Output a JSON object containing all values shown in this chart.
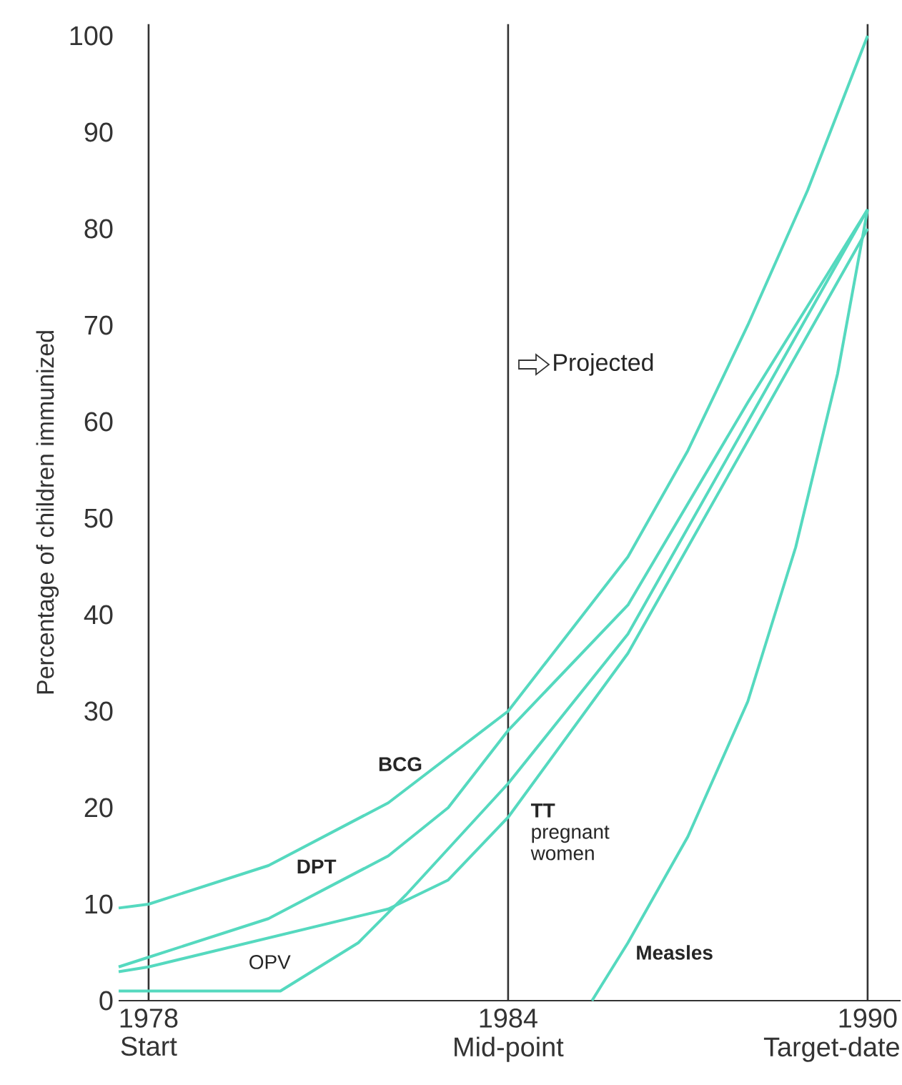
{
  "chart_data": {
    "type": "line",
    "ylabel": "Percentage of children immunized",
    "xlim": [
      1977.5,
      1990.55
    ],
    "ylim": [
      0,
      101.2
    ],
    "xticks": [
      1978,
      1984,
      1990
    ],
    "yticks": [
      0,
      10,
      20,
      30,
      40,
      50,
      60,
      70,
      80,
      90,
      100
    ],
    "series": [
      {
        "name": "BCG",
        "color": "#55d9bf",
        "x": [
          1977.5,
          1978,
          1980,
          1982,
          1984,
          1986,
          1987,
          1988,
          1989,
          1990
        ],
        "values": [
          9.6,
          10,
          14,
          20.5,
          30,
          46,
          57,
          70,
          84,
          100
        ]
      },
      {
        "name": "DPT",
        "color": "#55d9bf",
        "x": [
          1977.5,
          1978,
          1980,
          1982,
          1983,
          1984,
          1986,
          1988,
          1990
        ],
        "values": [
          3.5,
          4.5,
          8.5,
          15,
          20,
          28,
          41,
          62,
          82
        ]
      },
      {
        "name": "**TT** pregnant women",
        "color": "#55d9bf",
        "x": [
          1977.5,
          1978,
          1980,
          1982,
          1983,
          1984,
          1986,
          1988,
          1990
        ],
        "values": [
          3,
          3.5,
          6.5,
          9.5,
          12.5,
          19,
          36,
          58,
          80
        ]
      },
      {
        "name": "OPV",
        "color": "#55d9bf",
        "x": [
          1977.5,
          1980.2,
          1981.5,
          1982.3,
          1984,
          1986,
          1988,
          1990
        ],
        "values": [
          1,
          1,
          6,
          11,
          22.5,
          38,
          60,
          82
        ]
      },
      {
        "name": "Measles",
        "color": "#55d9bf",
        "x": [
          1985.4,
          1986,
          1987,
          1988,
          1988.8,
          1989.5,
          1990
        ],
        "values": [
          0,
          6,
          17,
          31,
          47,
          65,
          82
        ]
      }
    ],
    "ref_lines": [
      {
        "axis": "x",
        "value": 1978,
        "label": "Start",
        "color": "#333333"
      },
      {
        "axis": "x",
        "value": 1984,
        "label": "Mid-point",
        "color": "#333333"
      },
      {
        "axis": "x",
        "value": 1990,
        "label": "Target-date",
        "color": "#333333"
      }
    ],
    "annotations": [
      "Projected"
    ]
  }
}
